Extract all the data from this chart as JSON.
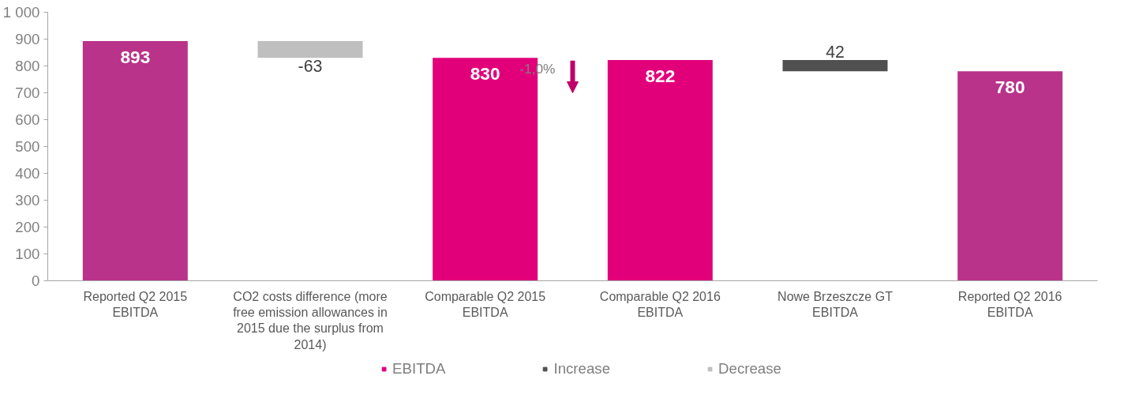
{
  "chart_data": {
    "type": "bar",
    "categories": [
      "Reported Q2 2015 EBITDA",
      "CO2 costs difference (more free emission allowances in 2015 due the surplus from 2014)",
      "Comparable Q2 2015 EBITDA",
      "Comparable Q2 2016 EBITDA",
      "Nowe Brzeszcze GT EBITDA",
      "Reported Q2 2016 EBITDA"
    ],
    "series": [
      {
        "name": "EBITDA",
        "color": "#e2007a",
        "colors": [
          "#b9338a",
          null,
          "#e2007a",
          "#e2007a",
          null,
          "#b9338a"
        ],
        "values": [
          893,
          null,
          830,
          822,
          null,
          780
        ]
      },
      {
        "name": "Increase",
        "color": "#505050",
        "values": [
          null,
          null,
          null,
          null,
          42,
          null
        ],
        "base": [
          null,
          null,
          null,
          null,
          780,
          null
        ]
      },
      {
        "name": "Decrease",
        "color": "#bfbfbf",
        "values": [
          null,
          -63,
          null,
          null,
          null,
          null
        ],
        "base": [
          null,
          893,
          null,
          null,
          null,
          null
        ]
      }
    ],
    "data_labels": true,
    "ylim": [
      0,
      1000
    ],
    "yticks": [
      0,
      100,
      200,
      300,
      400,
      500,
      600,
      700,
      800,
      900,
      {
        "value": 1000,
        "label": "1 000"
      }
    ],
    "grid": false,
    "legend": "bottom",
    "annotations": [
      "-1,0%"
    ]
  }
}
